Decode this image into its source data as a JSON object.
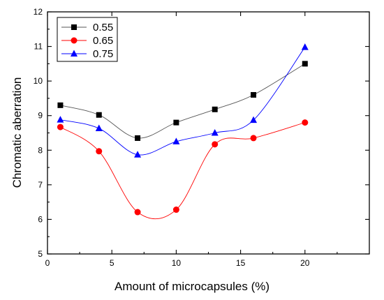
{
  "chart_data": {
    "type": "line",
    "title": "",
    "xlabel": "Amount of microcapsules (%)",
    "ylabel": "Chromatic aberration",
    "xlim": [
      0,
      25
    ],
    "ylim": [
      5,
      12
    ],
    "xticks": [
      "0",
      "5",
      "10",
      "15",
      "20"
    ],
    "yticks": [
      "5",
      "6",
      "7",
      "8",
      "9",
      "10",
      "11",
      "12"
    ],
    "x": [
      1,
      4,
      7,
      10,
      13,
      16,
      20
    ],
    "grid": false,
    "legend": "top-left",
    "series": [
      {
        "name": "0.55",
        "marker": "square",
        "color": "#000000",
        "line_color": "#555555",
        "values": [
          9.3,
          9.02,
          8.35,
          8.8,
          9.18,
          9.6,
          10.5
        ]
      },
      {
        "name": "0.65",
        "marker": "circle",
        "color": "#ff0000",
        "line_color": "#ff0000",
        "values": [
          8.67,
          7.97,
          6.21,
          6.28,
          8.17,
          8.35,
          8.8
        ]
      },
      {
        "name": "0.75",
        "marker": "triangle",
        "color": "#0000ff",
        "line_color": "#0000ff",
        "values": [
          8.88,
          8.63,
          7.87,
          8.25,
          8.5,
          8.87,
          10.98
        ]
      }
    ]
  }
}
